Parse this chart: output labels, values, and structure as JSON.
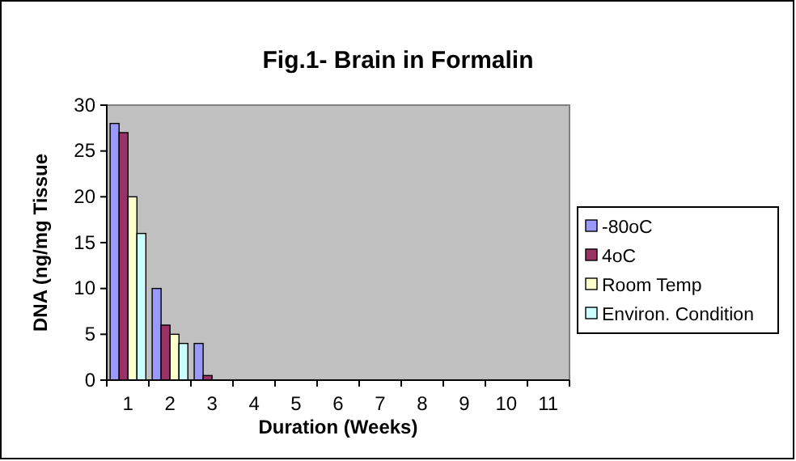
{
  "chart_data": {
    "type": "bar",
    "title": "Fig.1- Brain in Formalin",
    "xlabel": "Duration (Weeks)",
    "ylabel": "DNA (ng/mg Tissue",
    "categories": [
      "1",
      "2",
      "3",
      "4",
      "5",
      "6",
      "7",
      "8",
      "9",
      "10",
      "11"
    ],
    "series": [
      {
        "name": "-80oC",
        "color": "#9999ff",
        "values": [
          28,
          10,
          4,
          0,
          0,
          0,
          0,
          0,
          0,
          0,
          0
        ]
      },
      {
        "name": "4oC",
        "color": "#993366",
        "values": [
          27,
          6,
          0.5,
          0,
          0,
          0,
          0,
          0,
          0,
          0,
          0
        ]
      },
      {
        "name": "Room Temp",
        "color": "#ffffcc",
        "values": [
          20,
          5,
          0,
          0,
          0,
          0,
          0,
          0,
          0,
          0,
          0
        ]
      },
      {
        "name": "Environ. Condition",
        "color": "#ccffff",
        "values": [
          16,
          4,
          0,
          0,
          0,
          0,
          0,
          0,
          0,
          0,
          0
        ]
      }
    ],
    "ylim": [
      0,
      30
    ],
    "yticks": [
      0,
      5,
      10,
      15,
      20,
      25,
      30
    ],
    "grid": false,
    "legend": "right"
  }
}
